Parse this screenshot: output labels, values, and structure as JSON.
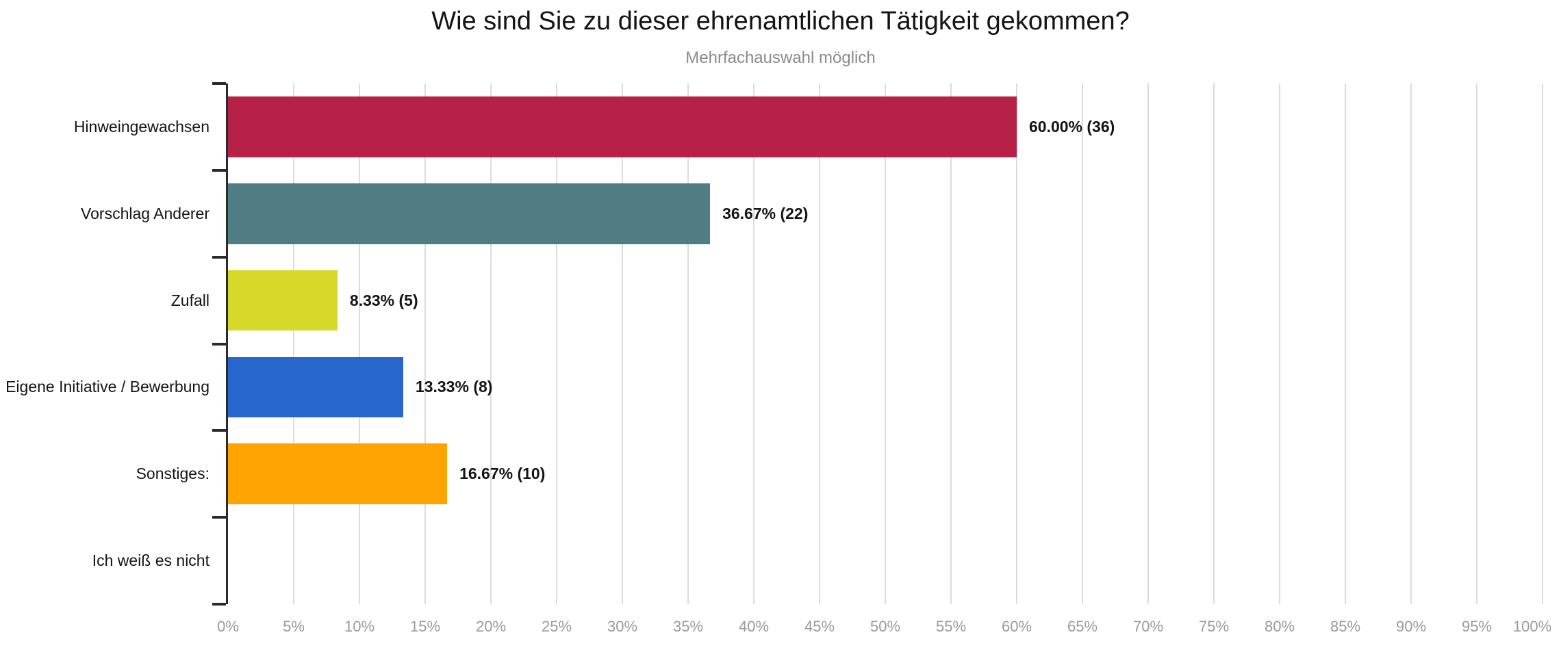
{
  "chart_data": {
    "type": "bar",
    "orientation": "horizontal",
    "title": "Wie sind Sie zu dieser ehrenamtlichen Tätigkeit gekommen?",
    "subtitle": "Mehrfachauswahl möglich",
    "categories": [
      "Hinweingewachsen",
      "Vorschlag Anderer",
      "Zufall",
      "Eigene Initiative / Bewerbung",
      "Sonstiges:",
      "Ich weiß es nicht"
    ],
    "values_percent": [
      60.0,
      36.67,
      8.33,
      13.33,
      16.67,
      0
    ],
    "counts": [
      36,
      22,
      5,
      8,
      10,
      0
    ],
    "value_labels": [
      "60.00% (36)",
      "36.67% (22)",
      "8.33% (5)",
      "13.33% (8)",
      "16.67% (10)",
      ""
    ],
    "bar_colors": [
      "#b72047",
      "#507c84",
      "#d6d929",
      "#2767cd",
      "#ffa502",
      null
    ],
    "xlabel": "",
    "ylabel": "",
    "xlim": [
      0,
      100
    ],
    "x_tick_step": 5,
    "x_tick_labels": [
      "0%",
      "5%",
      "10%",
      "15%",
      "20%",
      "25%",
      "30%",
      "35%",
      "40%",
      "45%",
      "50%",
      "55%",
      "60%",
      "65%",
      "70%",
      "75%",
      "80%",
      "85%",
      "90%",
      "95%",
      "100%"
    ],
    "grid": true,
    "legend": "none"
  }
}
